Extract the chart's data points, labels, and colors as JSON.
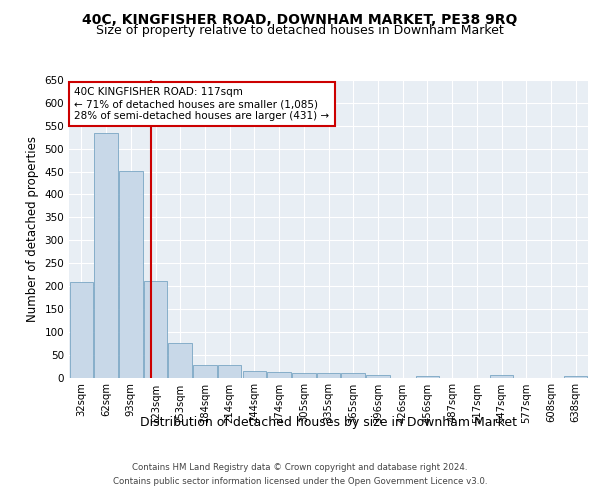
{
  "title1": "40C, KINGFISHER ROAD, DOWNHAM MARKET, PE38 9RQ",
  "title2": "Size of property relative to detached houses in Downham Market",
  "xlabel": "Distribution of detached houses by size in Downham Market",
  "ylabel": "Number of detached properties",
  "footer1": "Contains HM Land Registry data © Crown copyright and database right 2024.",
  "footer2": "Contains public sector information licensed under the Open Government Licence v3.0.",
  "categories": [
    "32sqm",
    "62sqm",
    "93sqm",
    "123sqm",
    "153sqm",
    "184sqm",
    "214sqm",
    "244sqm",
    "274sqm",
    "305sqm",
    "335sqm",
    "365sqm",
    "396sqm",
    "426sqm",
    "456sqm",
    "487sqm",
    "517sqm",
    "547sqm",
    "577sqm",
    "608sqm",
    "638sqm"
  ],
  "values": [
    208,
    535,
    452,
    210,
    75,
    27,
    27,
    15,
    12,
    10,
    9,
    9,
    5,
    0,
    4,
    0,
    0,
    5,
    0,
    0,
    4
  ],
  "bar_color": "#c8d8e8",
  "bar_edge_color": "#6699bb",
  "vline_x": 2.82,
  "vline_color": "#cc0000",
  "annotation_text": "40C KINGFISHER ROAD: 117sqm\n← 71% of detached houses are smaller (1,085)\n28% of semi-detached houses are larger (431) →",
  "annotation_box_color": "#ffffff",
  "annotation_box_edge": "#cc0000",
  "ylim": [
    0,
    650
  ],
  "yticks": [
    0,
    50,
    100,
    150,
    200,
    250,
    300,
    350,
    400,
    450,
    500,
    550,
    600,
    650
  ],
  "background_color": "#e8eef4",
  "fig_background": "#ffffff",
  "title1_fontsize": 10,
  "title2_fontsize": 9,
  "xlabel_fontsize": 9,
  "ylabel_fontsize": 8.5
}
